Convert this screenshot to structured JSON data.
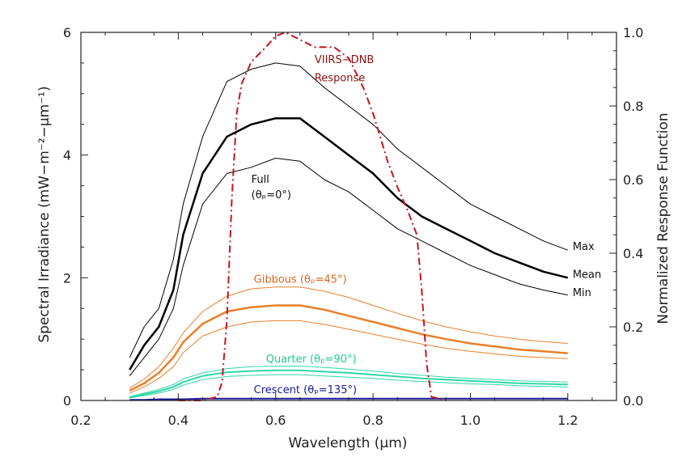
{
  "chart_data": {
    "type": "line",
    "xlabel": "Wavelength (μm)",
    "ylabel_left": "Spectral Irradiance (mW−m⁻²−μm⁻¹)",
    "ylabel_right": "Normalized Response Function",
    "xlim": [
      0.2,
      1.3
    ],
    "ylim_left": [
      0,
      6
    ],
    "ylim_right": [
      0,
      1.0
    ],
    "x_ticks": [
      0.2,
      0.4,
      0.6,
      0.8,
      1.0,
      1.2
    ],
    "x_tick_labels": [
      "0.2",
      "0.4",
      "0.6",
      "0.8",
      "1.0",
      "1.2"
    ],
    "y_left_ticks": [
      0,
      2,
      4,
      6
    ],
    "y_left_tick_labels": [
      "0",
      "2",
      "4",
      "6"
    ],
    "y_right_ticks": [
      0,
      0.2,
      0.4,
      0.6,
      0.8,
      1.0
    ],
    "y_right_tick_labels": [
      "0.0",
      "0.2",
      "0.4",
      "0.6",
      "0.8",
      "1.0"
    ],
    "x": [
      0.3,
      0.33,
      0.36,
      0.39,
      0.41,
      0.45,
      0.5,
      0.55,
      0.6,
      0.65,
      0.7,
      0.75,
      0.8,
      0.85,
      0.9,
      0.95,
      1.0,
      1.05,
      1.1,
      1.15,
      1.2
    ],
    "series": [
      {
        "color": "#000000",
        "width": 1,
        "values": [
          0.7,
          1.2,
          1.5,
          2.3,
          3.2,
          4.3,
          5.2,
          5.4,
          5.5,
          5.45,
          5.1,
          4.8,
          4.5,
          4.1,
          3.8,
          3.5,
          3.2,
          3.0,
          2.8,
          2.6,
          2.45
        ]
      },
      {
        "color": "#000000",
        "width": 2.5,
        "values": [
          0.5,
          0.9,
          1.2,
          1.8,
          2.7,
          3.7,
          4.3,
          4.5,
          4.6,
          4.6,
          4.3,
          4.0,
          3.7,
          3.3,
          3.0,
          2.8,
          2.6,
          2.4,
          2.25,
          2.1,
          2.0
        ]
      },
      {
        "color": "#000000",
        "width": 1,
        "values": [
          0.4,
          0.7,
          1.0,
          1.5,
          2.2,
          3.2,
          3.7,
          3.8,
          3.95,
          3.9,
          3.6,
          3.4,
          3.1,
          2.8,
          2.6,
          2.4,
          2.2,
          2.05,
          1.9,
          1.8,
          1.72
        ]
      },
      {
        "color": "#e8802a",
        "width": 1,
        "values": [
          0.2,
          0.35,
          0.55,
          0.85,
          1.1,
          1.45,
          1.7,
          1.82,
          1.85,
          1.85,
          1.78,
          1.68,
          1.55,
          1.42,
          1.3,
          1.2,
          1.12,
          1.05,
          1.0,
          0.96,
          0.93
        ]
      },
      {
        "color": "#e8802a",
        "width": 2.5,
        "values": [
          0.16,
          0.28,
          0.45,
          0.7,
          0.95,
          1.25,
          1.45,
          1.52,
          1.55,
          1.55,
          1.48,
          1.38,
          1.28,
          1.18,
          1.08,
          1.0,
          0.93,
          0.88,
          0.83,
          0.8,
          0.77
        ]
      },
      {
        "color": "#e8802a",
        "width": 1,
        "values": [
          0.12,
          0.22,
          0.36,
          0.55,
          0.78,
          1.05,
          1.2,
          1.28,
          1.3,
          1.3,
          1.24,
          1.16,
          1.08,
          1.0,
          0.92,
          0.85,
          0.8,
          0.76,
          0.72,
          0.7,
          0.68
        ]
      },
      {
        "color": "#2fd6a8",
        "width": 1,
        "values": [
          0.06,
          0.12,
          0.18,
          0.26,
          0.35,
          0.45,
          0.52,
          0.55,
          0.56,
          0.56,
          0.54,
          0.51,
          0.48,
          0.44,
          0.41,
          0.38,
          0.36,
          0.34,
          0.32,
          0.31,
          0.3
        ]
      },
      {
        "color": "#2fd6a8",
        "width": 2,
        "values": [
          0.05,
          0.1,
          0.15,
          0.22,
          0.3,
          0.4,
          0.46,
          0.48,
          0.49,
          0.49,
          0.47,
          0.45,
          0.42,
          0.39,
          0.36,
          0.34,
          0.32,
          0.3,
          0.28,
          0.27,
          0.26
        ]
      },
      {
        "color": "#2fd6a8",
        "width": 1,
        "values": [
          0.04,
          0.08,
          0.12,
          0.18,
          0.25,
          0.34,
          0.39,
          0.41,
          0.42,
          0.42,
          0.4,
          0.38,
          0.36,
          0.33,
          0.31,
          0.29,
          0.27,
          0.26,
          0.24,
          0.23,
          0.22
        ]
      },
      {
        "color": "#1a1a9c",
        "width": 2,
        "values": [
          0.01,
          0.01,
          0.02,
          0.02,
          0.02,
          0.03,
          0.03,
          0.03,
          0.03,
          0.03,
          0.03,
          0.03,
          0.03,
          0.03,
          0.03,
          0.03,
          0.03,
          0.03,
          0.03,
          0.03,
          0.03
        ]
      }
    ],
    "response": {
      "axis": "right",
      "color": "#c8141e",
      "style": "dash-dot",
      "x": [
        0.4,
        0.45,
        0.48,
        0.49,
        0.5,
        0.51,
        0.52,
        0.53,
        0.55,
        0.58,
        0.6,
        0.62,
        0.65,
        0.68,
        0.7,
        0.72,
        0.75,
        0.78,
        0.8,
        0.83,
        0.85,
        0.87,
        0.89,
        0.9,
        0.91,
        0.92,
        0.95
      ],
      "values": [
        0.0,
        0.0,
        0.01,
        0.05,
        0.22,
        0.55,
        0.78,
        0.86,
        0.92,
        0.96,
        0.99,
        1.0,
        0.98,
        0.96,
        0.96,
        0.96,
        0.93,
        0.85,
        0.78,
        0.65,
        0.58,
        0.52,
        0.45,
        0.3,
        0.1,
        0.01,
        0.0
      ]
    },
    "annotations": [
      {
        "text": "VIIRS−DNB",
        "x": 0.68,
        "y": 5.5,
        "color": "#8b1010",
        "anchor": "start"
      },
      {
        "text": "Response",
        "x": 0.68,
        "y": 5.2,
        "color": "#8b1010",
        "anchor": "start"
      },
      {
        "text": "Full",
        "x": 0.55,
        "y": 3.55,
        "color": "#111111",
        "anchor": "start"
      },
      {
        "text": "(θₚ=0°)",
        "x": 0.55,
        "y": 3.3,
        "color": "#111111",
        "anchor": "start"
      },
      {
        "text": "Max",
        "x": 1.21,
        "y": 2.45,
        "color": "#111111",
        "anchor": "start"
      },
      {
        "text": "Mean",
        "x": 1.21,
        "y": 2.0,
        "color": "#111111",
        "anchor": "start"
      },
      {
        "text": "Min",
        "x": 1.21,
        "y": 1.7,
        "color": "#111111",
        "anchor": "start"
      },
      {
        "text": "Gibbous (θₚ=45°)",
        "x": 0.555,
        "y": 1.92,
        "color": "#d4691e",
        "anchor": "start"
      },
      {
        "text": "Quarter (θₚ=90°)",
        "x": 0.58,
        "y": 0.62,
        "color": "#20c896",
        "anchor": "start"
      },
      {
        "text": "Crescent (θₚ=135°)",
        "x": 0.555,
        "y": 0.12,
        "color": "#1a1a9c",
        "anchor": "start"
      }
    ]
  }
}
